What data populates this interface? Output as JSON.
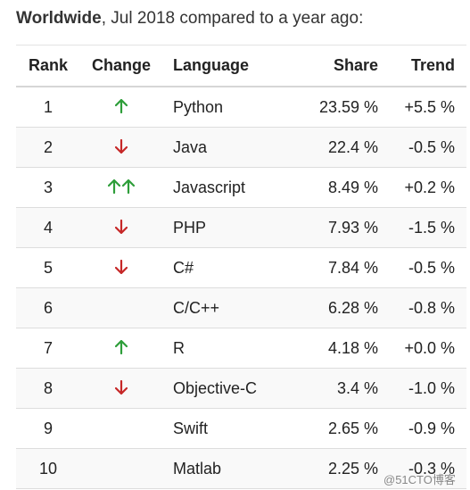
{
  "header": {
    "title_bold": "Worldwide",
    "title_rest": ", Jul 2018 compared to a year ago:"
  },
  "table": {
    "columns": [
      "Rank",
      "Change",
      "Language",
      "Share",
      "Trend"
    ],
    "rows": [
      {
        "rank": "1",
        "change": "up",
        "language": "Python",
        "share": "23.59 %",
        "trend": "+5.5 %"
      },
      {
        "rank": "2",
        "change": "down",
        "language": "Java",
        "share": "22.4 %",
        "trend": "-0.5 %"
      },
      {
        "rank": "3",
        "change": "up-up",
        "language": "Javascript",
        "share": "8.49 %",
        "trend": "+0.2 %"
      },
      {
        "rank": "4",
        "change": "down",
        "language": "PHP",
        "share": "7.93 %",
        "trend": "-1.5 %"
      },
      {
        "rank": "5",
        "change": "down",
        "language": "C#",
        "share": "7.84 %",
        "trend": "-0.5 %"
      },
      {
        "rank": "6",
        "change": "none",
        "language": "C/C++",
        "share": "6.28 %",
        "trend": "-0.8 %"
      },
      {
        "rank": "7",
        "change": "up",
        "language": "R",
        "share": "4.18 %",
        "trend": "+0.0 %"
      },
      {
        "rank": "8",
        "change": "down",
        "language": "Objective-C",
        "share": "3.4 %",
        "trend": "-1.0 %"
      },
      {
        "rank": "9",
        "change": "none",
        "language": "Swift",
        "share": "2.65 %",
        "trend": "-0.9 %"
      },
      {
        "rank": "10",
        "change": "none",
        "language": "Matlab",
        "share": "2.25 %",
        "trend": "-0.3 %"
      }
    ]
  },
  "colors": {
    "up_arrow": "#2e9e3a",
    "down_arrow": "#c62828",
    "alt_row": "#f9f9f9"
  },
  "watermark": "@51CTO博客"
}
